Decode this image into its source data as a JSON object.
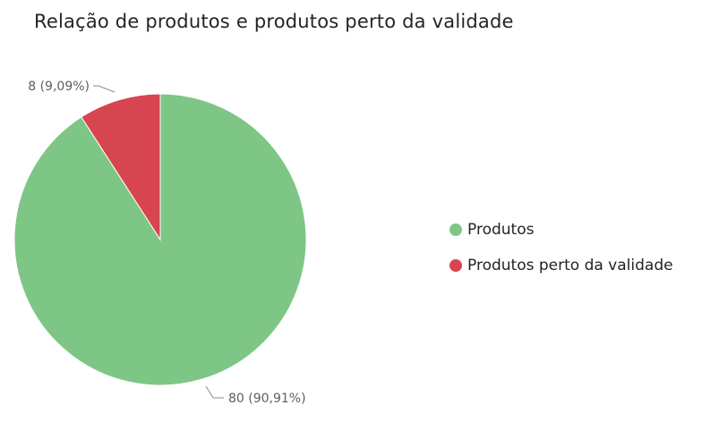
{
  "chart_data": {
    "type": "pie",
    "title": "Relação de produtos e produtos perto da validade",
    "categories": [
      "Produtos",
      "Produtos perto da validade"
    ],
    "values": [
      80,
      8
    ],
    "data_labels": [
      "80 (90,91%)",
      "8 (9,09%)"
    ],
    "colors": [
      "#7ec686",
      "#d64550"
    ],
    "legend_position": "right"
  }
}
